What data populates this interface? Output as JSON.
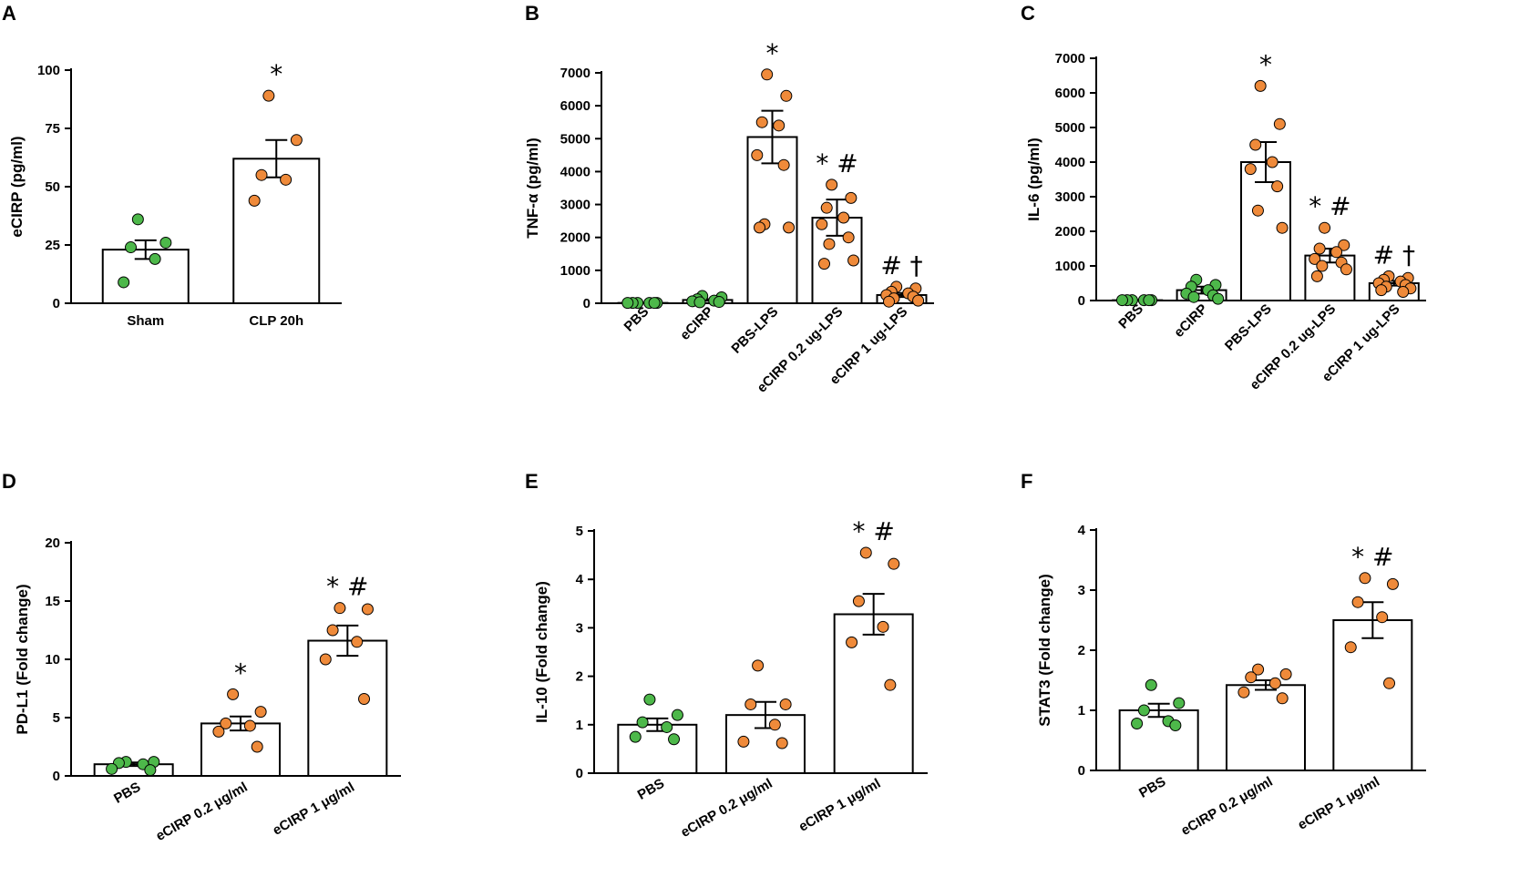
{
  "colors": {
    "green": "#4db84a",
    "orange": "#ef8a3a",
    "axis": "#000000",
    "bar_fill": "#ffffff"
  },
  "chart_data": [
    {
      "panel": "A",
      "type": "bar",
      "ylabel": "eCIRP (pg/ml)",
      "xlabel": "",
      "ylim": [
        0,
        100
      ],
      "yticks": [
        0,
        25,
        50,
        75,
        100
      ],
      "categories": [
        "Sham",
        "CLP 20h"
      ],
      "means": [
        23,
        62
      ],
      "sem": [
        4,
        8
      ],
      "points": [
        [
          36,
          26,
          24,
          19,
          9
        ],
        [
          89,
          70,
          55,
          53,
          44
        ]
      ],
      "point_colors": [
        "green",
        "orange"
      ],
      "significance": [
        "",
        "*"
      ]
    },
    {
      "panel": "B",
      "type": "bar",
      "ylabel": "TNF-α (pg/ml)",
      "xlabel": "",
      "ylim": [
        0,
        7000
      ],
      "yticks": [
        0,
        1000,
        2000,
        3000,
        4000,
        5000,
        6000,
        7000
      ],
      "categories": [
        "PBS",
        "eCIRP",
        "PBS-LPS",
        "eCIRP 0.2 ug-LPS",
        "eCIRP 1 ug-LPS"
      ],
      "means": [
        10,
        100,
        5050,
        2600,
        250
      ],
      "sem": [
        5,
        25,
        800,
        550,
        60
      ],
      "points": [
        [
          10,
          10,
          10,
          10,
          10,
          10
        ],
        [
          220,
          180,
          120,
          80,
          60,
          40,
          30
        ],
        [
          6950,
          6300,
          5500,
          5400,
          4500,
          4200,
          2400,
          2300,
          2300
        ],
        [
          3600,
          3200,
          2900,
          2600,
          2400,
          2000,
          1800,
          1300,
          1200
        ],
        [
          500,
          450,
          350,
          300,
          250,
          200,
          150,
          80,
          50
        ]
      ],
      "point_colors": [
        "green",
        "green",
        "orange",
        "orange",
        "orange"
      ],
      "significance": [
        "",
        "",
        "*",
        "*#",
        "#†"
      ]
    },
    {
      "panel": "C",
      "type": "bar",
      "ylabel": "IL-6 (pg/ml)",
      "xlabel": "",
      "ylim": [
        0,
        7000
      ],
      "yticks": [
        0,
        1000,
        2000,
        3000,
        4000,
        5000,
        6000,
        7000
      ],
      "categories": [
        "PBS",
        "eCIRP",
        "PBS-LPS",
        "eCIRP 0.2 ug-LPS",
        "eCIRP 1 ug-LPS"
      ],
      "means": [
        10,
        300,
        4000,
        1300,
        500
      ],
      "sem": [
        5,
        100,
        580,
        200,
        70
      ],
      "points": [
        [
          10,
          10,
          10,
          10,
          10,
          10
        ],
        [
          600,
          450,
          400,
          300,
          200,
          150,
          100,
          50
        ],
        [
          6200,
          5100,
          4500,
          4000,
          3800,
          3300,
          2600,
          2100
        ],
        [
          2100,
          1600,
          1500,
          1400,
          1200,
          1100,
          1000,
          900,
          700
        ],
        [
          700,
          650,
          600,
          550,
          500,
          450,
          400,
          350,
          300,
          250
        ]
      ],
      "point_colors": [
        "green",
        "green",
        "orange",
        "orange",
        "orange"
      ],
      "significance": [
        "",
        "",
        "*",
        "*#",
        "#†"
      ]
    },
    {
      "panel": "D",
      "type": "bar",
      "ylabel": "PD-L1 (Fold change)",
      "xlabel": "",
      "ylim": [
        0,
        20
      ],
      "yticks": [
        0,
        5,
        10,
        15,
        20
      ],
      "categories": [
        "PBS",
        "eCIRP 0.2 μg/ml",
        "eCIRP 1 μg/ml"
      ],
      "means": [
        1.0,
        4.5,
        11.6
      ],
      "sem": [
        0.15,
        0.6,
        1.3
      ],
      "points": [
        [
          1.2,
          1.2,
          1.1,
          1.0,
          0.6,
          0.5
        ],
        [
          7.0,
          5.5,
          4.5,
          4.3,
          3.8,
          2.5
        ],
        [
          14.4,
          14.3,
          12.5,
          11.5,
          10.0,
          6.6
        ]
      ],
      "point_colors": [
        "green",
        "orange",
        "orange"
      ],
      "significance": [
        "",
        "*",
        "*#"
      ]
    },
    {
      "panel": "E",
      "type": "bar",
      "ylabel": "IL-10 (Fold change)",
      "xlabel": "",
      "ylim": [
        0,
        5
      ],
      "yticks": [
        0,
        1,
        2,
        3,
        4,
        5
      ],
      "categories": [
        "PBS",
        "eCIRP 0.2 μg/ml",
        "eCIRP 1 μg/ml"
      ],
      "means": [
        1.0,
        1.2,
        3.28
      ],
      "sem": [
        0.13,
        0.27,
        0.42
      ],
      "points": [
        [
          1.52,
          1.2,
          1.05,
          0.95,
          0.75,
          0.7
        ],
        [
          2.22,
          1.42,
          1.42,
          1.0,
          0.65,
          0.62
        ],
        [
          4.55,
          4.32,
          3.55,
          3.02,
          2.7,
          1.82
        ]
      ],
      "point_colors": [
        "green",
        "orange",
        "orange"
      ],
      "significance": [
        "",
        "",
        "*#"
      ]
    },
    {
      "panel": "F",
      "type": "bar",
      "ylabel": "STAT3 (Fold change)",
      "xlabel": "",
      "ylim": [
        0,
        4
      ],
      "yticks": [
        0,
        1,
        2,
        3,
        4
      ],
      "categories": [
        "PBS",
        "eCIRP 0.2 μg/ml",
        "eCIRP 1 μg/ml"
      ],
      "means": [
        1.0,
        1.42,
        2.5
      ],
      "sem": [
        0.11,
        0.08,
        0.3
      ],
      "points": [
        [
          1.42,
          1.12,
          1.0,
          0.82,
          0.78,
          0.75
        ],
        [
          1.68,
          1.6,
          1.55,
          1.45,
          1.3,
          1.2
        ],
        [
          3.2,
          3.1,
          2.8,
          2.55,
          2.05,
          1.45
        ]
      ],
      "point_colors": [
        "green",
        "orange",
        "orange"
      ],
      "significance": [
        "",
        "",
        "*#"
      ]
    }
  ]
}
